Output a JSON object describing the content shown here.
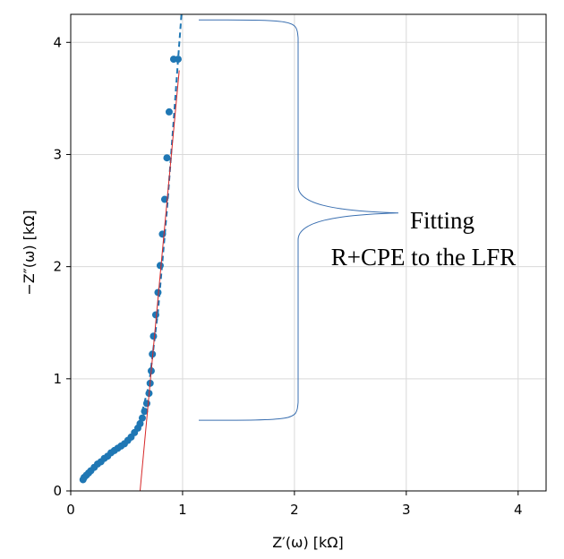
{
  "chart_data": {
    "type": "scatter",
    "xlabel": "Z′(ω) [kΩ]",
    "ylabel": "−Z″(ω) [kΩ]",
    "xlim": [
      0,
      4.25
    ],
    "ylim": [
      0,
      4.25
    ],
    "xticks": [
      "0",
      "1",
      "2",
      "3",
      "4"
    ],
    "yticks": [
      "0",
      "1",
      "2",
      "3",
      "4"
    ],
    "grid": true,
    "annotation": {
      "line1": "Fitting",
      "line2": "R+CPE to the LFR"
    },
    "bracket_range": [
      0.63,
      4.2
    ],
    "colors": {
      "data": "#1f77b4",
      "fit": "#d62728",
      "bracket": "#3a6fb0",
      "grid": "#d9d9d9"
    },
    "series": [
      {
        "type": "scatter",
        "x": [
          0.11,
          0.12,
          0.14,
          0.16,
          0.18,
          0.21,
          0.24,
          0.27,
          0.3,
          0.33,
          0.36,
          0.39,
          0.42,
          0.45,
          0.48,
          0.51,
          0.54,
          0.57,
          0.6,
          0.62,
          0.64,
          0.66,
          0.68,
          0.7,
          0.71,
          0.72,
          0.73,
          0.74,
          0.76,
          0.78,
          0.8,
          0.82,
          0.84,
          0.86,
          0.88,
          0.92,
          0.96
        ],
        "y": [
          0.1,
          0.12,
          0.14,
          0.16,
          0.18,
          0.21,
          0.24,
          0.26,
          0.29,
          0.31,
          0.34,
          0.36,
          0.38,
          0.4,
          0.42,
          0.45,
          0.48,
          0.52,
          0.56,
          0.6,
          0.65,
          0.71,
          0.78,
          0.87,
          0.96,
          1.07,
          1.22,
          1.38,
          1.57,
          1.77,
          2.01,
          2.29,
          2.6,
          2.97,
          3.38,
          3.85,
          3.85
        ]
      },
      {
        "type": "line",
        "style": "dashed",
        "x": [
          0.6,
          0.7,
          0.78,
          0.86,
          0.92,
          0.96,
          0.99
        ],
        "y": [
          0.55,
          0.95,
          1.6,
          2.5,
          3.3,
          3.85,
          4.25
        ]
      },
      {
        "type": "line",
        "style": "solid",
        "x": [
          0.62,
          0.97
        ],
        "y": [
          0.0,
          3.75
        ]
      }
    ]
  }
}
